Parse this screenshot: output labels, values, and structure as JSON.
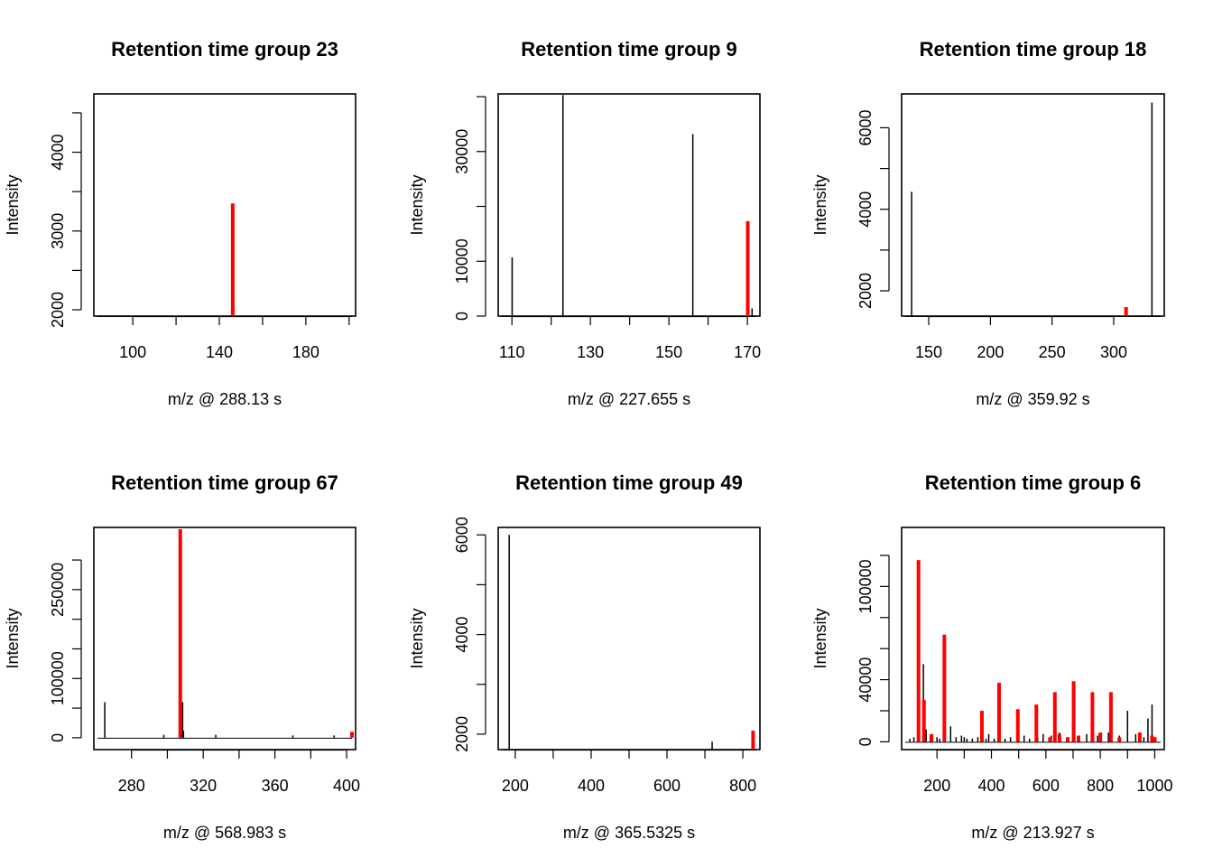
{
  "colors": {
    "other": "#000000",
    "highlight": "#ff0000",
    "axis": "#000000"
  },
  "chart_data": [
    {
      "type": "bar",
      "title": "Retention time group 23",
      "xlabel": "m/z @ 288.13 s",
      "ylabel": "Intensity",
      "xlim": [
        82,
        203
      ],
      "ylim": [
        1920,
        4740
      ],
      "xticks": [
        100,
        140,
        180
      ],
      "xminor": [
        120,
        160,
        200
      ],
      "yticks": [
        2000,
        3000,
        4000
      ],
      "yminor": [
        2500,
        3500,
        4500
      ],
      "series": [
        {
          "color": "#000000",
          "lw": 1.5,
          "x": [],
          "y": []
        },
        {
          "color": "#ff0000",
          "lw": 4,
          "x": [
            146.2
          ],
          "y": [
            3350
          ]
        }
      ]
    },
    {
      "type": "bar",
      "title": "Retention time group 9",
      "xlabel": "m/z @ 227.655 s",
      "ylabel": "Intensity",
      "xlim": [
        106.5,
        173.2
      ],
      "ylim": [
        0,
        40500
      ],
      "xticks": [
        110,
        130,
        150,
        170
      ],
      "xminor": [
        120,
        140,
        160
      ],
      "yticks": [
        0,
        10000,
        30000
      ],
      "yminor": [
        20000,
        40000
      ],
      "series": [
        {
          "color": "#000000",
          "lw": 1.5,
          "x": [
            110.05,
            123.0,
            156.1,
            171.2
          ],
          "y": [
            10700,
            40300,
            33200,
            1400
          ]
        },
        {
          "color": "#ff0000",
          "lw": 4,
          "x": [
            170.1
          ],
          "y": [
            17300
          ]
        }
      ]
    },
    {
      "type": "bar",
      "title": "Retention time group 18",
      "xlabel": "m/z @ 359.92 s",
      "ylabel": "Intensity",
      "xlim": [
        128,
        341
      ],
      "ylim": [
        1380,
        6830
      ],
      "xticks": [
        150,
        200,
        250,
        300
      ],
      "xminor": [],
      "yticks": [
        2000,
        4000,
        6000
      ],
      "yminor": [
        3000,
        5000
      ],
      "series": [
        {
          "color": "#000000",
          "lw": 1.5,
          "x": [
            136.1,
            331.0
          ],
          "y": [
            4430,
            6620
          ]
        },
        {
          "color": "#ff0000",
          "lw": 4,
          "x": [
            310.0
          ],
          "y": [
            1600
          ]
        }
      ]
    },
    {
      "type": "bar",
      "title": "Retention time group 67",
      "xlabel": "m/z @ 568.983 s",
      "ylabel": "Intensity",
      "xlim": [
        259,
        405
      ],
      "ylim": [
        -20000,
        355000
      ],
      "xticks": [
        280,
        320,
        360,
        400
      ],
      "xminor": [
        300,
        340,
        380
      ],
      "yticks": [
        0,
        100000,
        250000
      ],
      "yminor": [
        50000,
        150000,
        200000,
        300000
      ],
      "series": [
        {
          "color": "#000000",
          "lw": 1.5,
          "x": [
            265.1,
            298.0,
            308.5,
            309.0,
            327.0,
            370.0,
            393.0
          ],
          "y": [
            60000,
            5000,
            60000,
            12000,
            5000,
            4000,
            4000
          ]
        },
        {
          "color": "#ff0000",
          "lw": 4,
          "x": [
            307.2,
            403.0
          ],
          "y": [
            352000,
            10000
          ]
        }
      ]
    },
    {
      "type": "bar",
      "title": "Retention time group 49",
      "xlabel": "m/z @ 365.5325 s",
      "ylabel": "Intensity",
      "xlim": [
        155,
        845
      ],
      "ylim": [
        1690,
        6150
      ],
      "xticks": [
        200,
        400,
        600,
        800
      ],
      "xminor": [
        300,
        500,
        700
      ],
      "yticks": [
        2000,
        4000,
        6000
      ],
      "yminor": [
        3000,
        5000
      ],
      "series": [
        {
          "color": "#000000",
          "lw": 1.5,
          "x": [
            184.0,
            719.0
          ],
          "y": [
            6000,
            1850
          ]
        },
        {
          "color": "#ff0000",
          "lw": 4,
          "x": [
            827.0
          ],
          "y": [
            2070
          ]
        }
      ]
    },
    {
      "type": "bar",
      "title": "Retention time group 6",
      "xlabel": "m/z @ 213.927 s",
      "ylabel": "Intensity",
      "xlim": [
        70,
        1035
      ],
      "ylim": [
        -5000,
        138000
      ],
      "xticks": [
        200,
        400,
        600,
        800,
        1000
      ],
      "xminor": [
        300,
        500,
        700,
        900
      ],
      "yticks": [
        0,
        40000,
        100000
      ],
      "yminor": [
        20000,
        60000,
        80000,
        120000
      ],
      "series": [
        {
          "color": "#000000",
          "lw": 1.5,
          "x": [
            100,
            115,
            150,
            160,
            175,
            200,
            210,
            250,
            270,
            290,
            300,
            310,
            330,
            350,
            380,
            390,
            410,
            450,
            470,
            500,
            520,
            540,
            570,
            590,
            620,
            650,
            680,
            720,
            750,
            790,
            830,
            870,
            900,
            930,
            960,
            975,
            990
          ],
          "y": [
            2000,
            3000,
            50000,
            8000,
            4000,
            3000,
            2000,
            10000,
            3000,
            4000,
            3000,
            2000,
            2000,
            3000,
            2000,
            5000,
            2000,
            2000,
            3000,
            2000,
            4000,
            2000,
            3000,
            5000,
            4000,
            6000,
            3000,
            4000,
            5000,
            4000,
            6000,
            4000,
            20000,
            5000,
            3000,
            15000,
            24000
          ]
        },
        {
          "color": "#ff0000",
          "lw": 4,
          "x": [
            132,
            152,
            180,
            227,
            365,
            428,
            497,
            565,
            633,
            702,
            771,
            839,
            615,
            650,
            680,
            720,
            800,
            870,
            945,
            990,
            1000
          ],
          "y": [
            117000,
            27000,
            5000,
            69000,
            20000,
            38000,
            21000,
            24000,
            32000,
            39000,
            32000,
            32000,
            3000,
            5000,
            3000,
            4000,
            6000,
            3000,
            6000,
            4000,
            3000
          ]
        }
      ]
    }
  ]
}
